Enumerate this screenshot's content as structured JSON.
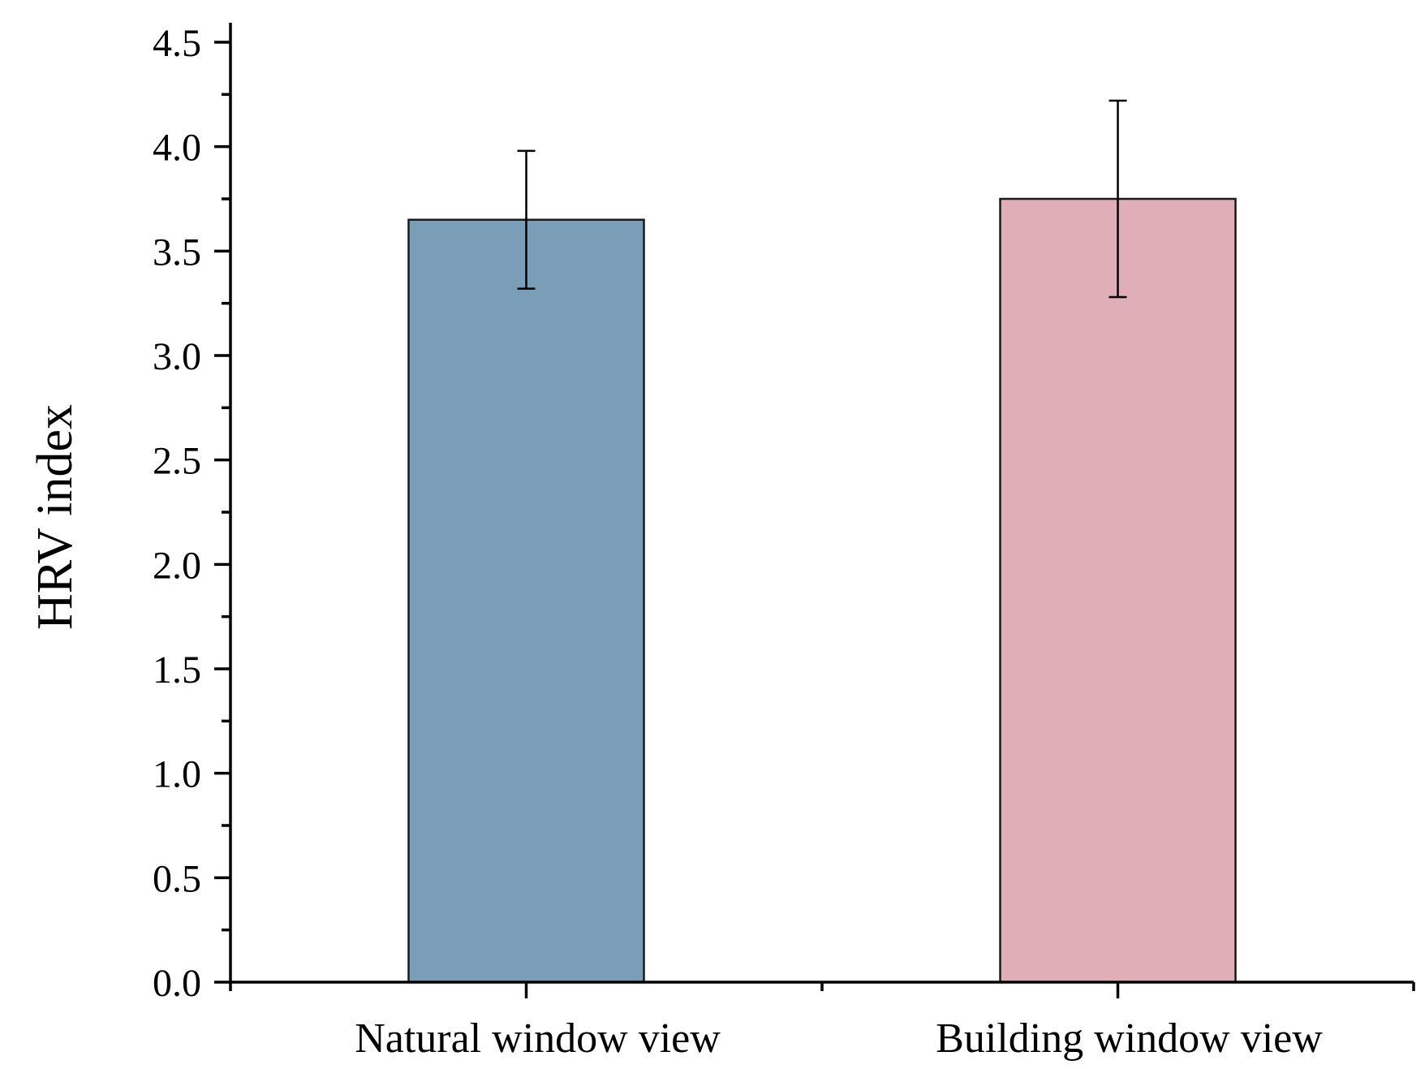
{
  "chart_data": {
    "type": "bar",
    "title": "",
    "xlabel": "",
    "ylabel": "HRV index",
    "categories": [
      "Natural window view",
      "Building window view"
    ],
    "values": [
      3.65,
      3.75
    ],
    "errors": [
      0.33,
      0.47
    ],
    "colors": [
      "#7a9db8",
      "#e0aeb7"
    ],
    "ylim": [
      0,
      4.5
    ],
    "yticks": [
      "0.0",
      "0.5",
      "1.0",
      "1.5",
      "2.0",
      "2.5",
      "3.0",
      "3.5",
      "4.0",
      "4.5"
    ],
    "grid": false,
    "legend": "none"
  }
}
